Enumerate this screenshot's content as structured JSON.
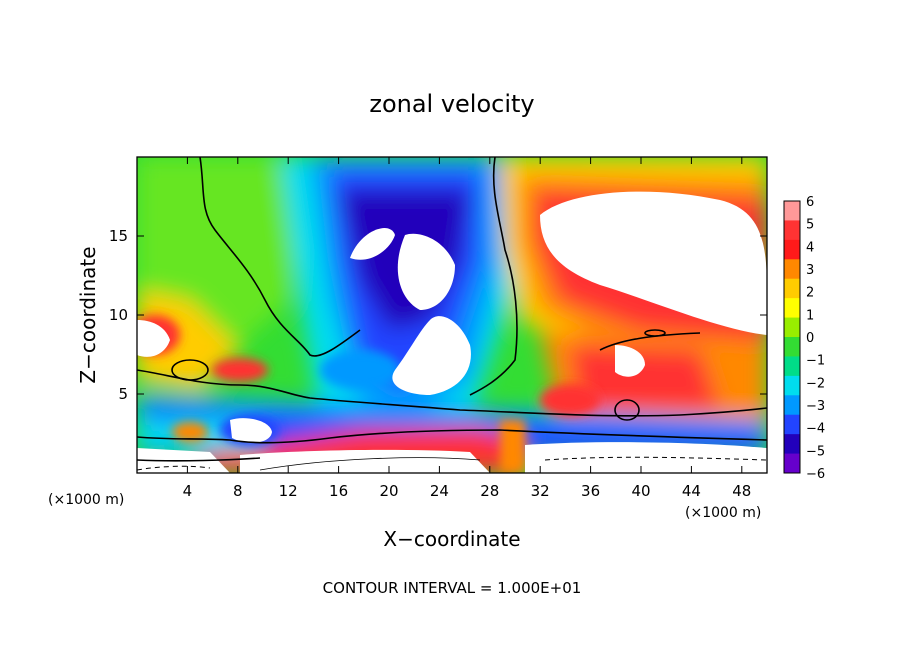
{
  "chart_data": {
    "type": "heatmap",
    "title": "zonal velocity",
    "xlabel": "X−coordinate",
    "ylabel": "Z−coordinate",
    "x_unit_label": "(×1000 m)",
    "x_unit_label_right": "(×1000 m)",
    "footer": "CONTOUR INTERVAL = 1.000E+01",
    "xlim": [
      0,
      50
    ],
    "ylim": [
      0,
      20
    ],
    "x_ticks": [
      4,
      8,
      12,
      16,
      20,
      24,
      28,
      32,
      36,
      40,
      44,
      48
    ],
    "y_ticks": [
      5,
      10,
      15
    ],
    "colorbar": {
      "levels": [
        6,
        5,
        4,
        3,
        2,
        1,
        0,
        -1,
        -2,
        -3,
        -4,
        -5,
        -6
      ],
      "labels": [
        "6",
        "5",
        "4",
        "3",
        "2",
        "1",
        "0",
        "−1",
        "−2",
        "−3",
        "−4",
        "−5",
        "−6"
      ],
      "colors": [
        "#ff9999",
        "#ff3333",
        "#ff1a1a",
        "#ff8800",
        "#ffcc00",
        "#ffff00",
        "#99ee00",
        "#33dd33",
        "#00dd88",
        "#00ddee",
        "#0099ff",
        "#2244ff",
        "#2200bb",
        "#6600cc"
      ]
    },
    "features": [
      {
        "kind": "strong-negative",
        "x": 21,
        "z": 15,
        "value": -6
      },
      {
        "kind": "strong-positive",
        "x": 42,
        "z": 13,
        "value": 6
      },
      {
        "kind": "strong-positive",
        "x": 36,
        "z": 6,
        "value": 5
      },
      {
        "kind": "strong-positive",
        "x": 2,
        "z": 9,
        "value": 5
      },
      {
        "kind": "strong-negative",
        "x": 9,
        "z": 2.8,
        "value": -5
      }
    ]
  }
}
